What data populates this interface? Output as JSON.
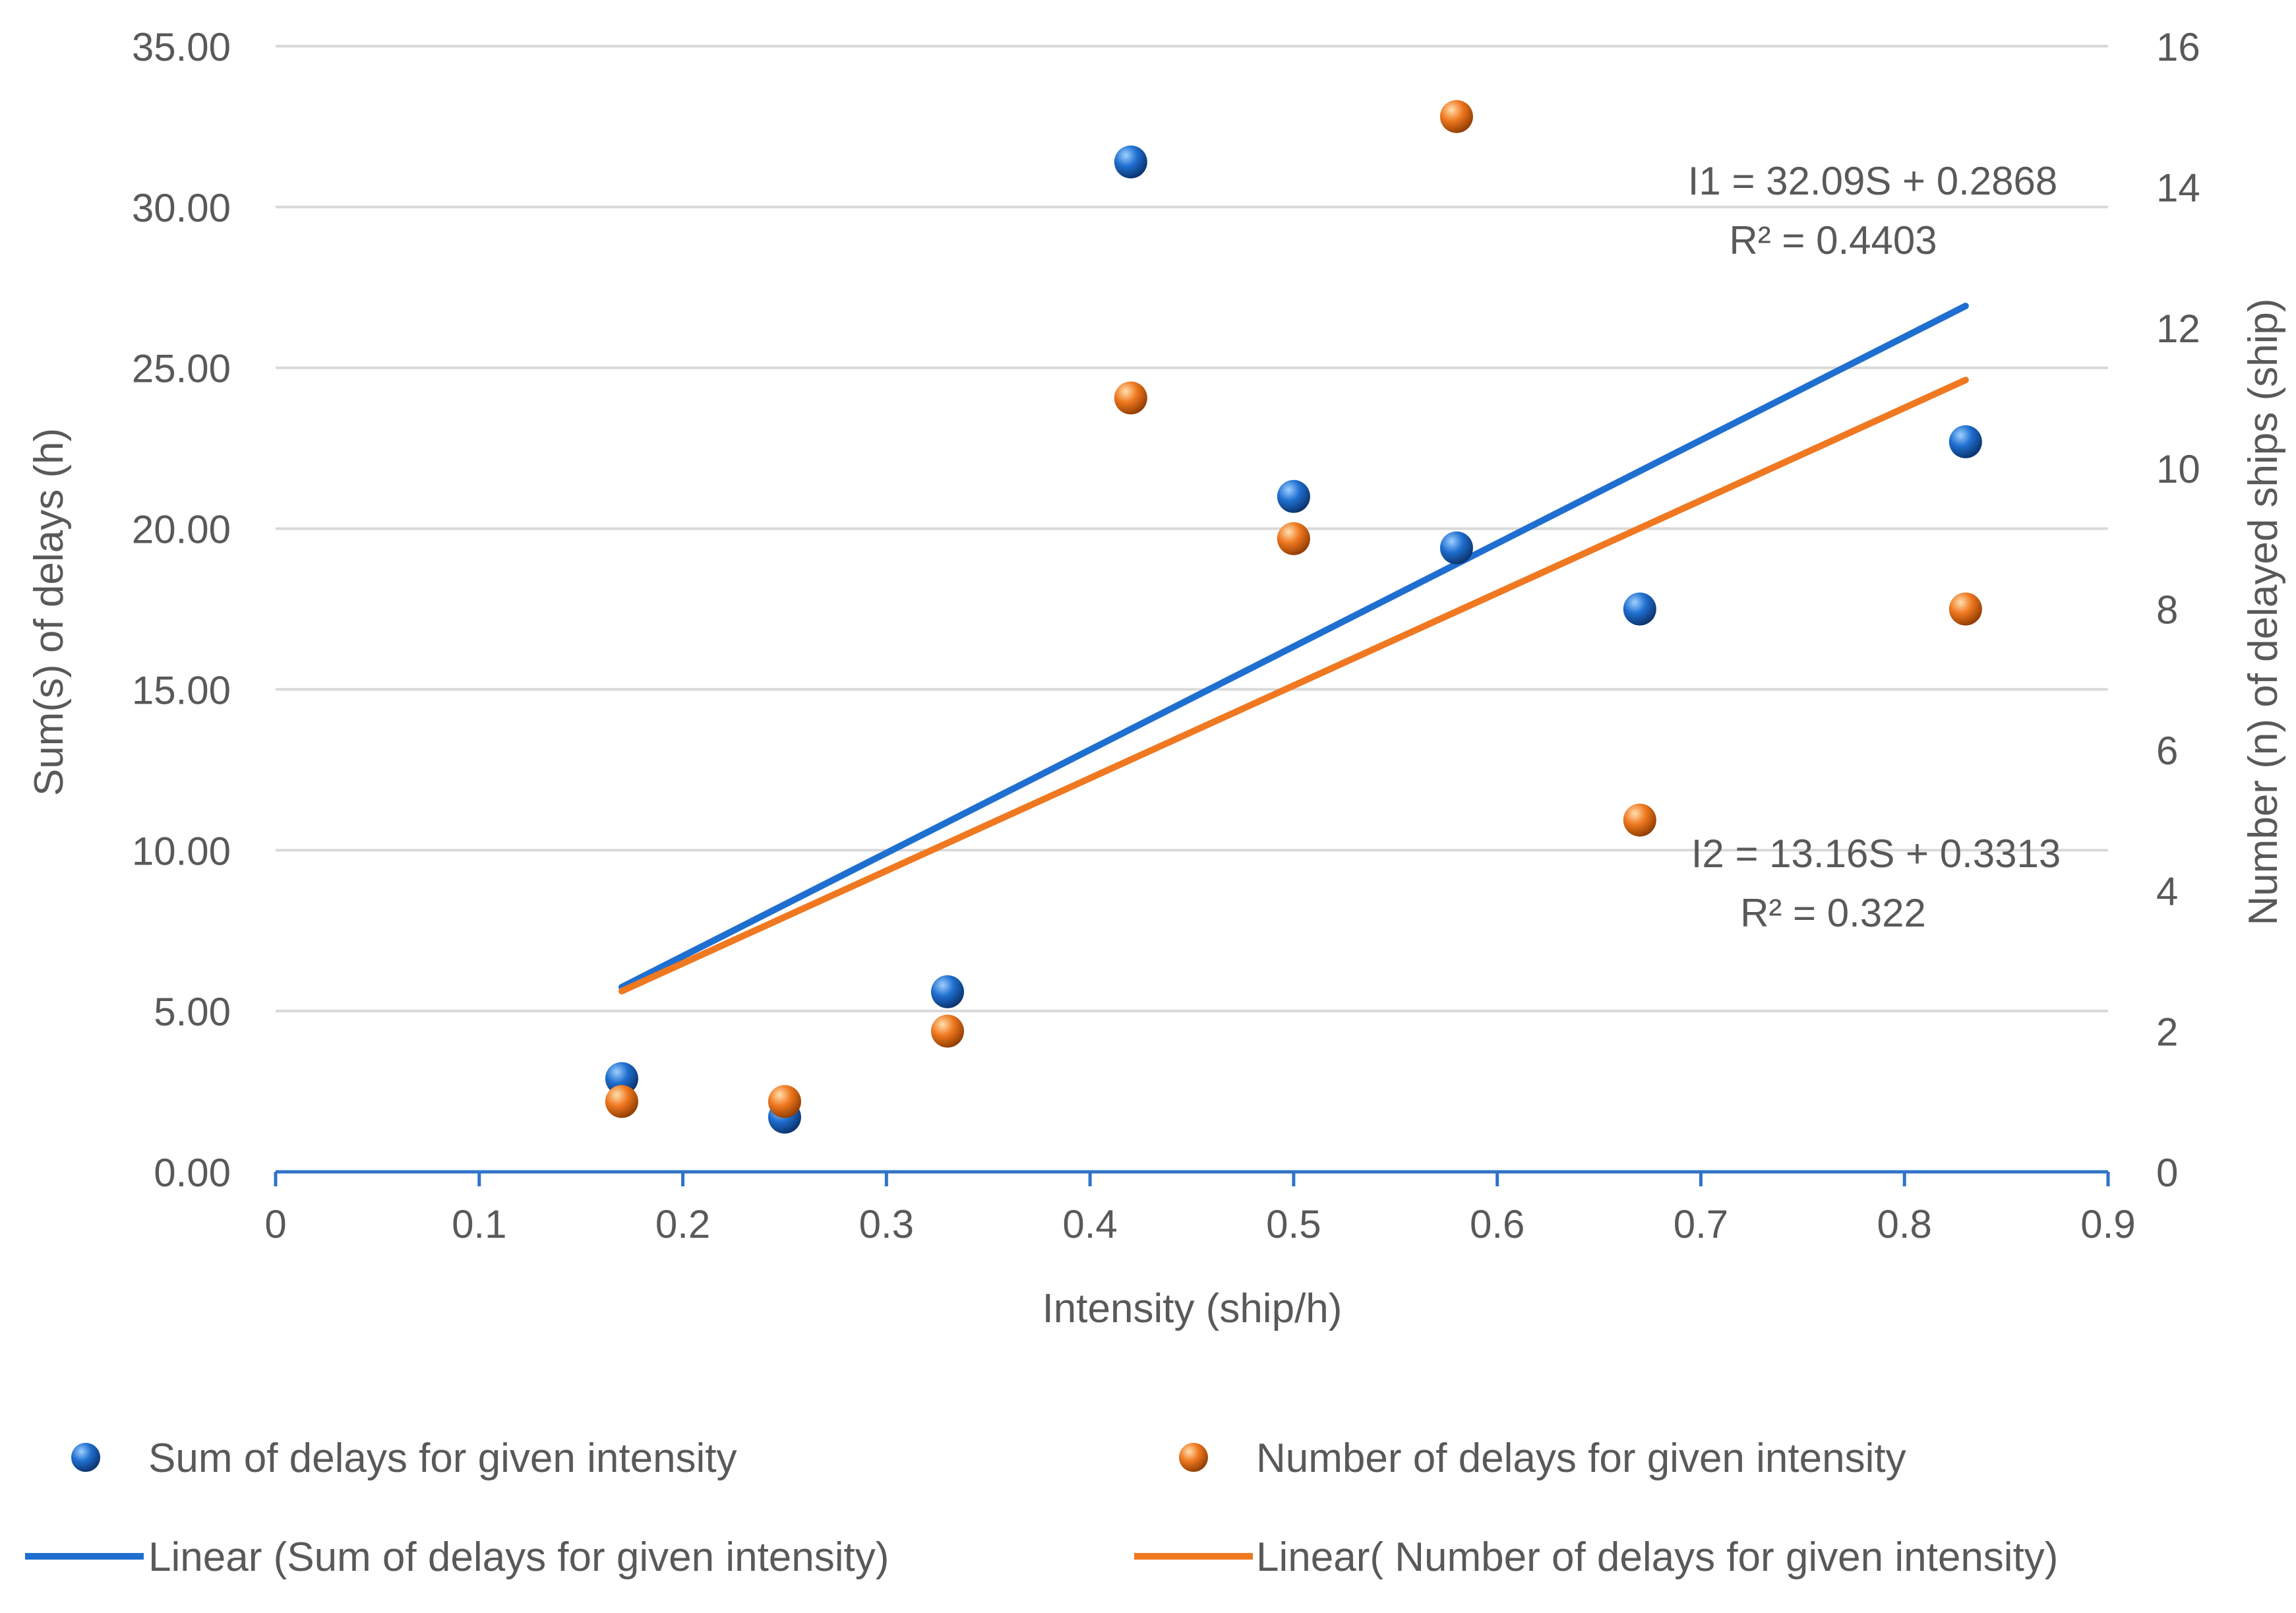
{
  "chart_data": {
    "type": "scatter",
    "title": "",
    "xlabel": "Intensity (ship/h)",
    "ylabel_left": "Sum(s) of delays (h)",
    "ylabel_right": "Number (n) of delayed ships (ship)",
    "xlim": [
      0,
      0.9
    ],
    "ylim_left": [
      0,
      35
    ],
    "ylim_right": [
      0,
      16
    ],
    "x_ticks": [
      "0",
      "0.1",
      "0.2",
      "0.3",
      "0.4",
      "0.5",
      "0.6",
      "0.7",
      "0.8",
      "0.9"
    ],
    "y_left_ticks": [
      "0.00",
      "5.00",
      "10.00",
      "15.00",
      "20.00",
      "25.00",
      "30.00",
      "35.00"
    ],
    "y_right_ticks": [
      "0",
      "2",
      "4",
      "6",
      "8",
      "10",
      "12",
      "14",
      "16"
    ],
    "grid": true,
    "series": [
      {
        "name": "Sum of delays for given intensity",
        "axis": "left",
        "color": "#1f6fd0",
        "x": [
          0.17,
          0.25,
          0.33,
          0.42,
          0.5,
          0.58,
          0.67,
          0.83
        ],
        "y": [
          2.9,
          1.7,
          5.6,
          31.4,
          21.0,
          19.4,
          17.5,
          22.7
        ]
      },
      {
        "name": "Number of delays for given intensity",
        "axis": "right",
        "color": "#f07820",
        "x": [
          0.17,
          0.25,
          0.33,
          0.42,
          0.5,
          0.58,
          0.67,
          0.83
        ],
        "y": [
          1,
          1,
          2,
          11,
          9,
          15,
          5,
          8
        ]
      }
    ],
    "trendlines": [
      {
        "name": "Linear (Sum of delays for given intensity)",
        "axis": "left",
        "color": "#1f6fd0",
        "slope": 32.09,
        "intercept": 0.2868,
        "x_range": [
          0.17,
          0.83
        ],
        "equation": "I1 = 32.09S + 0.2868",
        "r2": "R² = 0.4403"
      },
      {
        "name": "Linear( Number of delays for given intensity)",
        "axis": "right",
        "color": "#f07820",
        "slope": 13.16,
        "intercept": 0.3313,
        "x_range": [
          0.17,
          0.83
        ],
        "equation": "I2 = 13.16S + 0.3313",
        "r2": "R² = 0.322"
      }
    ],
    "legend": {
      "placement": "bottom",
      "items": [
        "Sum of delays for given intensity",
        "Number of delays for given intensity",
        "Linear (Sum of delays for given intensity)",
        "Linear( Number of delays for given intensity)"
      ]
    }
  }
}
